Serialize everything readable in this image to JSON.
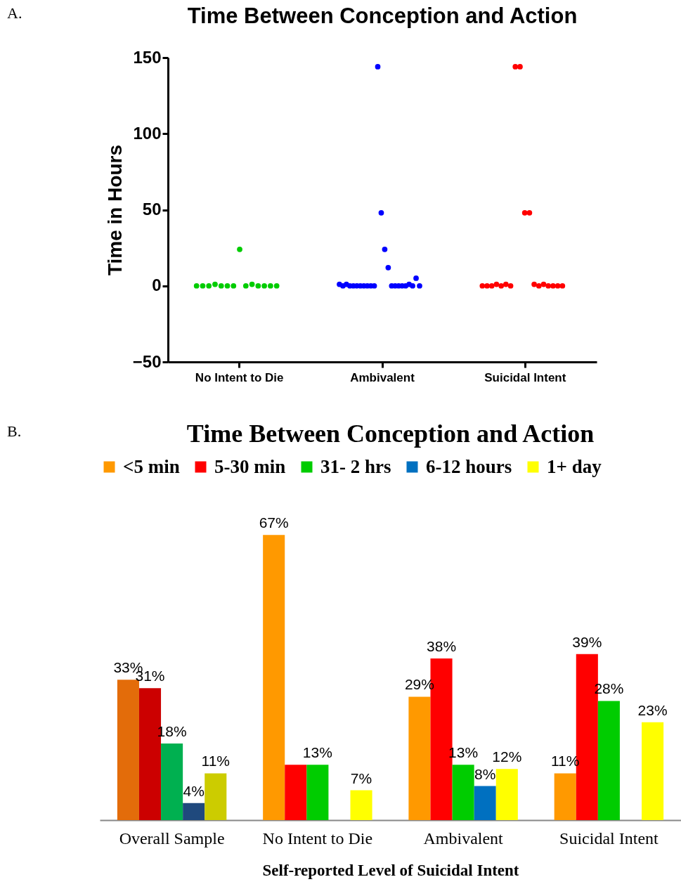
{
  "chart_data": [
    {
      "type": "scatter",
      "title": "Time Between Conception and Action",
      "ylabel": "Time in Hours",
      "annotations": [
        "A."
      ],
      "categories": [
        "No Intent to Die",
        "Ambivalent",
        "Suicidal Intent"
      ],
      "ylim": [
        -50,
        150
      ],
      "yticks": [
        -50,
        0,
        50,
        100,
        150
      ],
      "marker": "circle",
      "series": [
        {
          "color": "#00cc00",
          "x": [
            "No Intent to Die",
            "No Intent to Die",
            "No Intent to Die",
            "No Intent to Die",
            "No Intent to Die",
            "No Intent to Die",
            "No Intent to Die",
            "No Intent to Die",
            "No Intent to Die",
            "No Intent to Die",
            "No Intent to Die",
            "No Intent to Die",
            "No Intent to Die",
            "No Intent to Die"
          ],
          "values": [
            0,
            0,
            0,
            1,
            0,
            0,
            0,
            24,
            0,
            1,
            0,
            0,
            0,
            0
          ]
        },
        {
          "color": "#0000ff",
          "x": [
            "Ambivalent",
            "Ambivalent",
            "Ambivalent",
            "Ambivalent",
            "Ambivalent",
            "Ambivalent",
            "Ambivalent",
            "Ambivalent",
            "Ambivalent",
            "Ambivalent",
            "Ambivalent",
            "Ambivalent",
            "Ambivalent",
            "Ambivalent",
            "Ambivalent",
            "Ambivalent",
            "Ambivalent",
            "Ambivalent",
            "Ambivalent",
            "Ambivalent",
            "Ambivalent",
            "Ambivalent",
            "Ambivalent",
            "Ambivalent"
          ],
          "values": [
            1,
            0,
            1,
            0,
            0,
            0,
            0,
            0,
            0,
            0,
            0,
            144,
            48,
            24,
            12,
            0,
            0,
            0,
            0,
            0,
            1,
            0,
            5,
            0
          ]
        },
        {
          "color": "#ff0000",
          "x": [
            "Suicidal Intent",
            "Suicidal Intent",
            "Suicidal Intent",
            "Suicidal Intent",
            "Suicidal Intent",
            "Suicidal Intent",
            "Suicidal Intent",
            "Suicidal Intent",
            "Suicidal Intent",
            "Suicidal Intent",
            "Suicidal Intent",
            "Suicidal Intent",
            "Suicidal Intent",
            "Suicidal Intent",
            "Suicidal Intent",
            "Suicidal Intent",
            "Suicidal Intent",
            "Suicidal Intent"
          ],
          "values": [
            0,
            0,
            0,
            1,
            0,
            1,
            0,
            144,
            144,
            48,
            48,
            1,
            0,
            1,
            0,
            0,
            0,
            0
          ]
        }
      ]
    },
    {
      "type": "bar",
      "title": "Time Between Conception and Action",
      "xlabel": "Self-reported Level of Suicidal Intent",
      "annotations": [
        "B."
      ],
      "legend": "top",
      "categories": [
        "Overall Sample",
        "No Intent to Die",
        "Ambivalent",
        "Suicidal Intent"
      ],
      "series": [
        {
          "name": "<5 min",
          "color": "#ff9900",
          "colors": [
            "#e36c0a",
            "#ff9900",
            "#ff9900",
            "#ff9900"
          ],
          "values": [
            33,
            67,
            29,
            11
          ],
          "value_labels": [
            "33%",
            "67%",
            "29%",
            "11%"
          ]
        },
        {
          "name": "5-30 min",
          "color": "#ff0000",
          "colors": [
            "#cc0000",
            "#ff0000",
            "#ff0000",
            "#ff0000"
          ],
          "values": [
            31,
            13,
            38,
            39
          ],
          "value_labels": [
            "31%",
            null,
            "38%",
            "39%"
          ]
        },
        {
          "name": "31- 2 hrs",
          "color": "#00cc00",
          "colors": [
            "#00b050",
            "#00cc00",
            "#00cc00",
            "#00cc00"
          ],
          "values": [
            18,
            13,
            13,
            28
          ],
          "value_labels": [
            "18%",
            "13%",
            "13%",
            "28%"
          ]
        },
        {
          "name": "6-12 hours",
          "color": "#0070c0",
          "colors": [
            "#1f497d",
            null,
            "#0070c0",
            null
          ],
          "values": [
            4,
            null,
            8,
            null
          ],
          "value_labels": [
            "4%",
            null,
            "8%",
            null
          ]
        },
        {
          "name": "1+ day",
          "color": "#ffff00",
          "colors": [
            "#cccc00",
            "#ffff00",
            "#ffff00",
            "#ffff00"
          ],
          "values": [
            11,
            7,
            12,
            23
          ],
          "value_labels": [
            "11%",
            "7%",
            "12%",
            "23%"
          ]
        }
      ]
    }
  ]
}
